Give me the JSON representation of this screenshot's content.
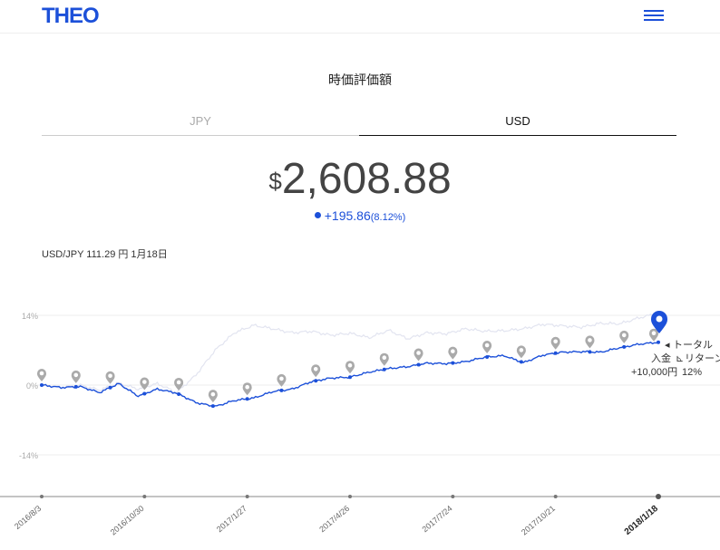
{
  "header": {
    "logo": "THEO",
    "menu_icon": "hamburger-menu-icon"
  },
  "title": "時価評価額",
  "tabs": [
    {
      "label": "JPY",
      "active": false
    },
    {
      "label": "USD",
      "active": true
    }
  ],
  "valuation": {
    "currency_symbol": "$",
    "amount": "2,608.88",
    "change": "+195.86",
    "change_pct": "(8.12%)"
  },
  "rate_text": "USD/JPY 111.29 円 1月18日",
  "colors": {
    "accent": "#1c50d9",
    "benchmark": "#e2e4f0",
    "pin": "#aaaaaa"
  },
  "chart_data": {
    "type": "line",
    "y_ticks": [
      "14%",
      "0%",
      "-14%"
    ],
    "ylim": [
      -14,
      14
    ],
    "x_labels": [
      "2016/8/3",
      "2016/10/30",
      "2017/1/27",
      "2017/4/26",
      "2017/7/24",
      "2017/10/21",
      "2018/1/18"
    ],
    "series": [
      {
        "role": "return",
        "values": [
          0,
          -0.5,
          -0.3,
          -1.5,
          0.3,
          -2.2,
          -0.8,
          -1.6,
          -3.5,
          -4.3,
          -3.1,
          -2.6,
          -1.3,
          -0.8,
          0.7,
          1.4,
          1.6,
          2.6,
          3.3,
          3.7,
          4.4,
          4.3,
          4.7,
          5.6,
          5.9,
          4.5,
          6,
          6.6,
          6.7,
          6.6,
          7.5,
          8.2,
          8.6
        ]
      },
      {
        "role": "benchmark",
        "values": [
          0,
          -0.4,
          0,
          -1,
          0.4,
          -0.8,
          0.3,
          -1.5,
          2,
          7,
          10.5,
          12,
          11.3,
          10.5,
          10.8,
          10,
          10.4,
          9.5,
          11,
          9.3,
          10.5,
          10.3,
          11.3,
          10.8,
          10.9,
          11.3,
          12.2,
          11.9,
          11.6,
          12.4,
          12.3,
          13.5,
          14.4
        ]
      }
    ],
    "deposit_pins": 19,
    "legend": {
      "total": "トータル",
      "return": "リターン",
      "return_value": "12%",
      "deposit": "入金",
      "deposit_value": "+10,000円"
    }
  }
}
